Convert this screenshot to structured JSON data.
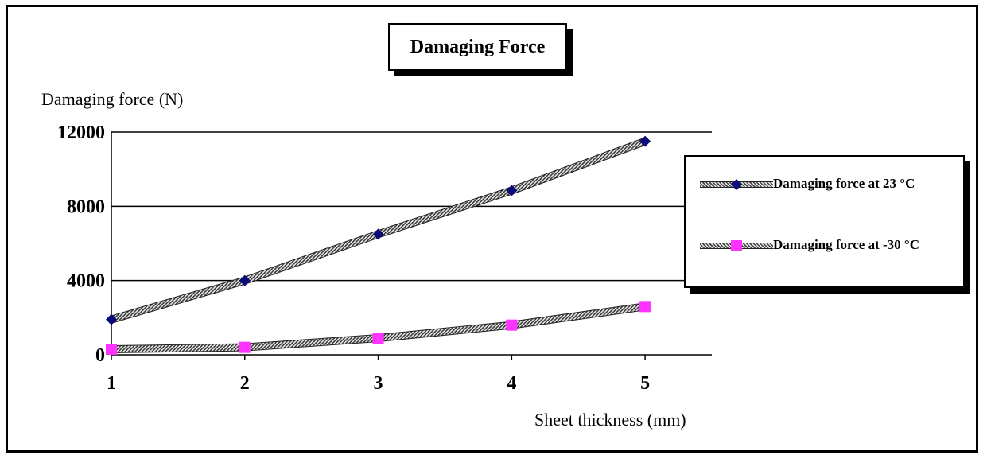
{
  "chart_data": {
    "type": "line",
    "title": "Damaging Force",
    "xlabel": "Sheet thickness (mm)",
    "ylabel": "Damaging force (N)",
    "x": [
      1,
      2,
      3,
      4,
      5
    ],
    "xticks": [
      "1",
      "2",
      "3",
      "4",
      "5"
    ],
    "yticks": [
      "0",
      "4000",
      "8000",
      "12000"
    ],
    "xlim": [
      1,
      5.5
    ],
    "ylim": [
      0,
      12000
    ],
    "grid": "horizontal",
    "legend_position": "right",
    "series": [
      {
        "name": "Damaging force at 23 °C",
        "values": [
          1900,
          4000,
          6500,
          8850,
          11500
        ],
        "marker": "diamond",
        "color": "#0a0a78"
      },
      {
        "name": "Damaging force at -30 °C",
        "values": [
          300,
          400,
          900,
          1600,
          2600
        ],
        "marker": "square",
        "color": "#ff33ff"
      }
    ]
  }
}
